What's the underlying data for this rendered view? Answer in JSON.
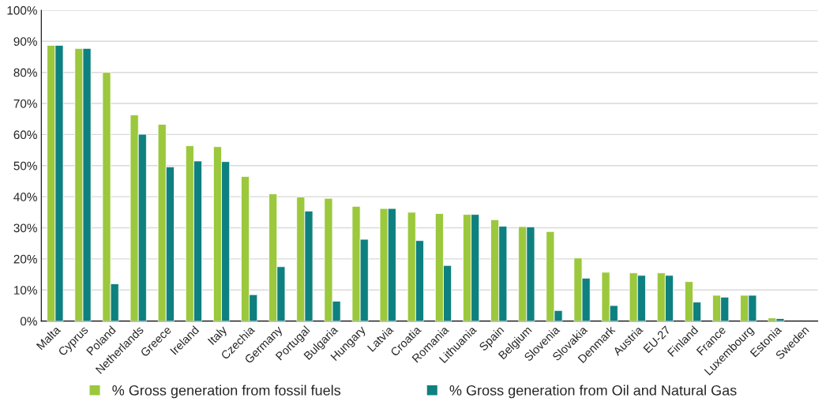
{
  "chart_data": {
    "type": "bar",
    "categories": [
      "Malta",
      "Cyprus",
      "Poland",
      "Netherlands",
      "Greece",
      "Ireland",
      "Italy",
      "Czechia",
      "Germany",
      "Portugal",
      "Bulgaria",
      "Hungary",
      "Latvia",
      "Croatia",
      "Romania",
      "Lithuania",
      "Spain",
      "Belgium",
      "Slovenia",
      "Slovakia",
      "Denmark",
      "Austria",
      "EU-27",
      "Finland",
      "France",
      "Luxembourg",
      "Estonia",
      "Sweden"
    ],
    "series": [
      {
        "name": "% Gross generation from fossil fuels",
        "color": "#9bc83c",
        "values": [
          88.7,
          87.7,
          80,
          66.3,
          63.3,
          56.4,
          56.1,
          46.5,
          40.9,
          39.9,
          39.5,
          36.9,
          36.2,
          35,
          34.6,
          34.3,
          32.6,
          30.4,
          28.8,
          20.3,
          15.7,
          15.5,
          15.5,
          12.7,
          8.3,
          8.3,
          1,
          null
        ]
      },
      {
        "name": "% Gross generation from Oil and Natural Gas",
        "color": "#0e8080",
        "values": [
          88.7,
          87.7,
          12,
          60.1,
          49.6,
          51.5,
          51.3,
          8.5,
          17.5,
          35.4,
          6.4,
          26.3,
          36.2,
          25.9,
          17.9,
          34.3,
          30.5,
          30.3,
          3.4,
          13.8,
          5,
          14.7,
          14.7,
          6.1,
          7.7,
          8.3,
          0.8,
          null
        ]
      }
    ],
    "ylim": [
      0,
      100
    ],
    "yticks": [
      {
        "value": 0,
        "label": "0%"
      },
      {
        "value": 10,
        "label": "10%"
      },
      {
        "value": 20,
        "label": "20%"
      },
      {
        "value": 30,
        "label": "30%"
      },
      {
        "value": 40,
        "label": "40%"
      },
      {
        "value": 50,
        "label": "50%"
      },
      {
        "value": 60,
        "label": "60%"
      },
      {
        "value": 70,
        "label": "70%"
      },
      {
        "value": 80,
        "label": "80%"
      },
      {
        "value": 90,
        "label": "90%"
      },
      {
        "value": 100,
        "label": "100%"
      }
    ],
    "grid": "y",
    "legend": "bottom"
  }
}
